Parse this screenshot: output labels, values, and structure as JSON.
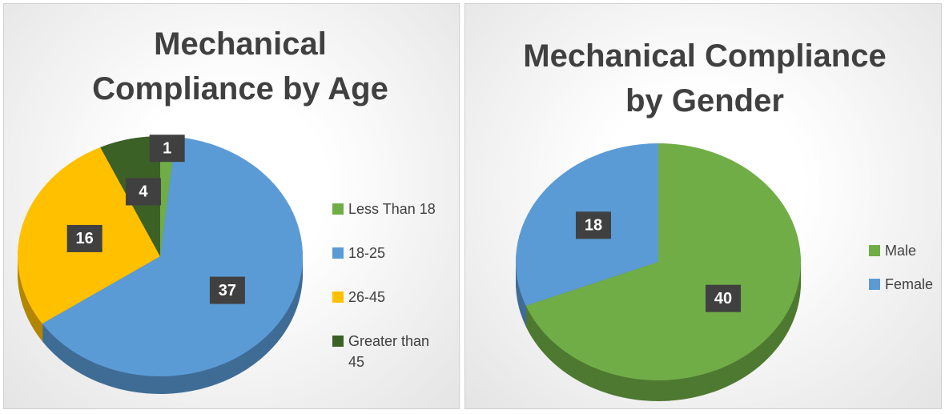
{
  "chart_data": [
    {
      "type": "pie",
      "title": "Mechanical Compliance by Age",
      "categories": [
        "Less Than 18",
        "18-25",
        "26-45",
        "Greater than 45"
      ],
      "values": [
        1,
        37,
        16,
        4
      ],
      "colors": [
        "#70ad47",
        "#5b9bd5",
        "#ffc000",
        "#3b6127"
      ]
    },
    {
      "type": "pie",
      "title": "Mechanical Compliance by Gender",
      "categories": [
        "Male",
        "Female"
      ],
      "values": [
        40,
        18
      ],
      "colors": [
        "#70ad47",
        "#5b9bd5"
      ]
    }
  ]
}
